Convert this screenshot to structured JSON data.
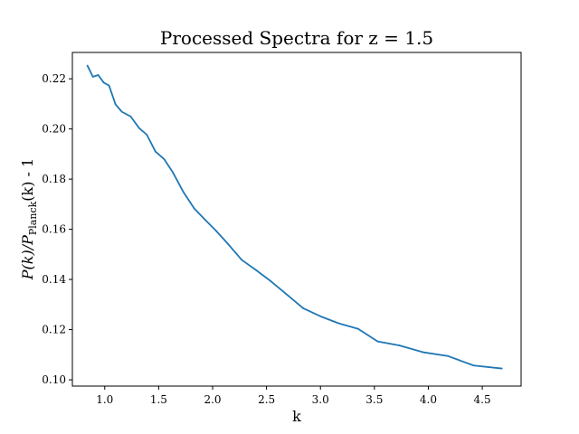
{
  "chart_data": {
    "type": "line",
    "title": "Processed Spectra for z = 1.5",
    "xlabel": "k",
    "ylabel": "P(k)/P_Planck(k) - 1",
    "ylabel_parts": {
      "pre": "P(k)/P",
      "sub": "Planck",
      "post": "(k) - 1"
    },
    "xlim": [
      0.7,
      4.86
    ],
    "ylim": [
      0.0975,
      0.2305
    ],
    "x_ticks": [
      1.0,
      1.5,
      2.0,
      2.5,
      3.0,
      3.5,
      4.0,
      4.5
    ],
    "x_tick_labels": [
      "1.0",
      "1.5",
      "2.0",
      "2.5",
      "3.0",
      "3.5",
      "4.0",
      "4.5"
    ],
    "y_ticks": [
      0.1,
      0.12,
      0.14,
      0.16,
      0.18,
      0.2,
      0.22
    ],
    "y_tick_labels": [
      "0.10",
      "0.12",
      "0.14",
      "0.16",
      "0.18",
      "0.20",
      "0.22"
    ],
    "grid": false,
    "series": [
      {
        "color": "#1f77b4",
        "x": [
          0.84,
          0.89,
          0.94,
          0.99,
          1.04,
          1.1,
          1.16,
          1.24,
          1.32,
          1.39,
          1.47,
          1.55,
          1.63,
          1.73,
          1.83,
          1.93,
          2.03,
          2.14,
          2.27,
          2.4,
          2.54,
          2.68,
          2.84,
          3.0,
          3.17,
          3.35,
          3.53,
          3.73,
          3.95,
          4.18,
          4.42,
          4.68
        ],
        "y": [
          0.2252,
          0.2208,
          0.2215,
          0.2185,
          0.2173,
          0.2098,
          0.2068,
          0.205,
          0.2003,
          0.1977,
          0.191,
          0.188,
          0.1828,
          0.1748,
          0.1683,
          0.1638,
          0.1595,
          0.1543,
          0.1478,
          0.1438,
          0.1393,
          0.1343,
          0.1285,
          0.1253,
          0.1225,
          0.1203,
          0.1153,
          0.1137,
          0.111,
          0.1095,
          0.1057,
          0.1045
        ]
      }
    ]
  }
}
